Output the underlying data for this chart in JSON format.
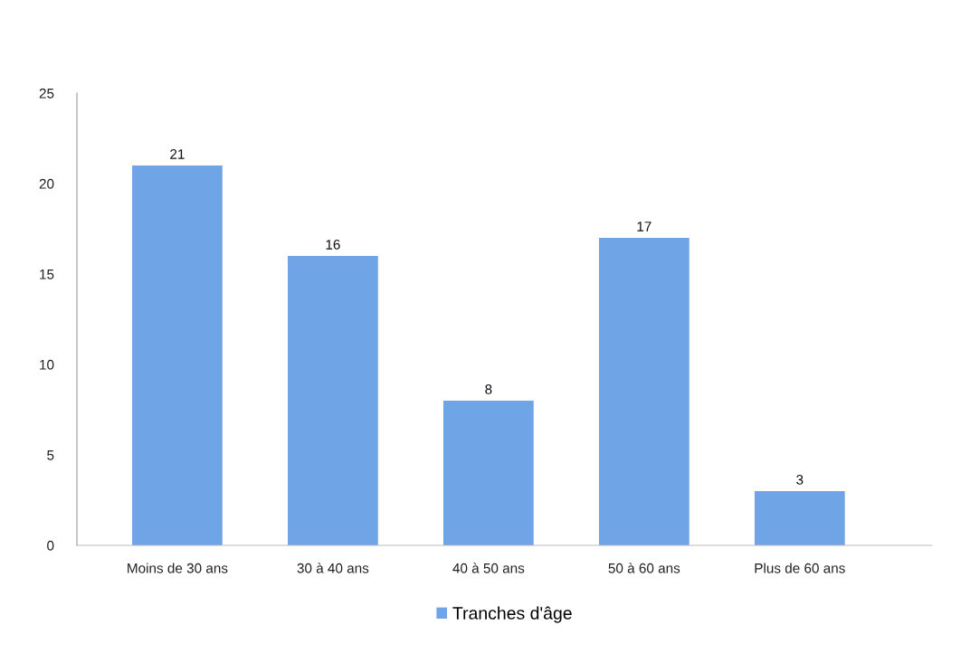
{
  "chart_data": {
    "type": "bar",
    "categories": [
      "Moins de 30 ans",
      "30 à 40 ans",
      "40 à 50 ans",
      "50 à 60 ans",
      "Plus de 60 ans"
    ],
    "series": [
      {
        "name": "Tranches d'âge",
        "color": "#6fa4e6",
        "values": [
          21,
          16,
          8,
          17,
          3
        ]
      }
    ],
    "ylim": [
      0,
      25
    ],
    "yticks": [
      0,
      5,
      10,
      15,
      20,
      25
    ],
    "data_labels": true,
    "grid": false,
    "legend": "bottom"
  }
}
